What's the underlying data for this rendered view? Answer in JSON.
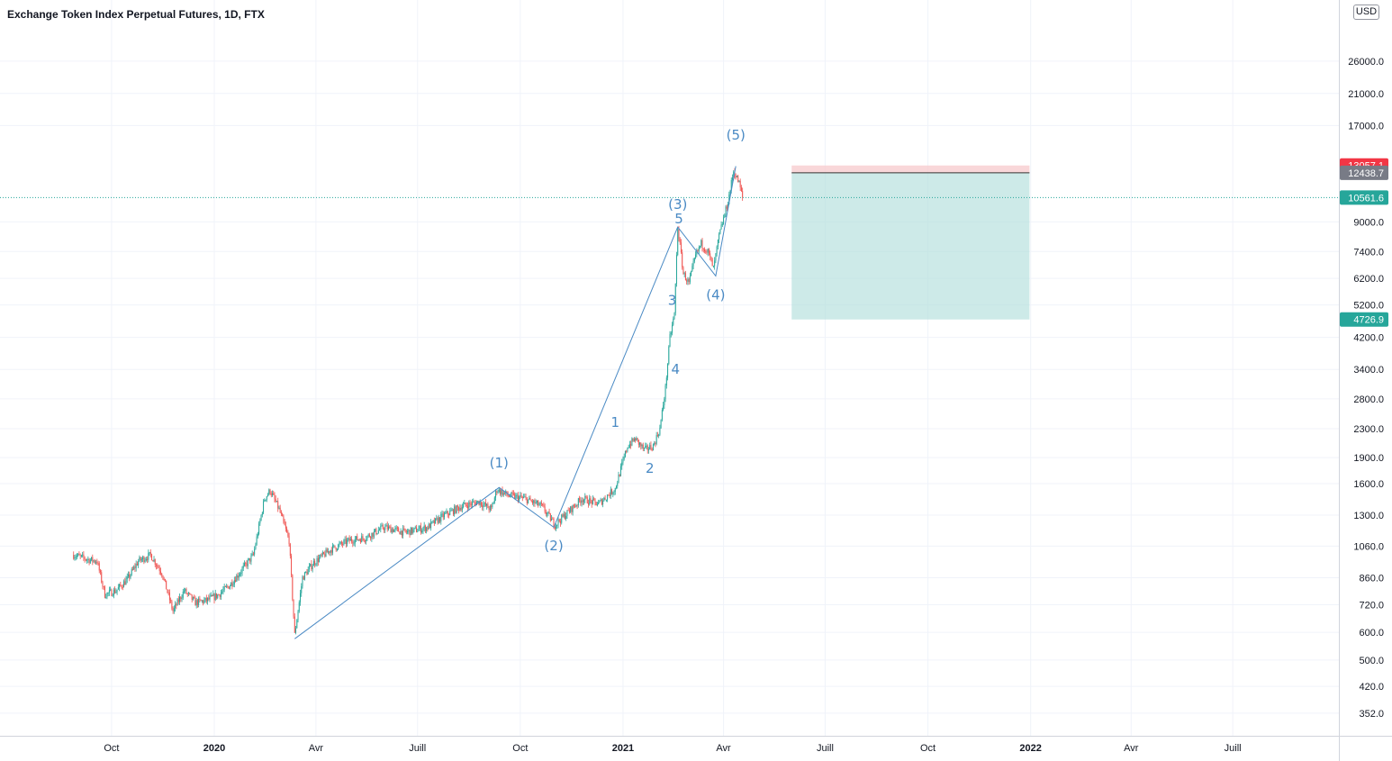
{
  "title": "Exchange Token Index Perpetual Futures, 1D, FTX",
  "currency": "USD",
  "colors": {
    "up": "#26a69a",
    "down": "#ef5350",
    "wave": "#4a8ac4",
    "grid": "#f0f3fa",
    "last_price": "#26a69a",
    "stop": "#f23645",
    "entry": "#787b86",
    "target_zone": "#b2dfdb",
    "stop_zone": "#f7c9cc"
  },
  "chart_data": {
    "type": "candlestick",
    "y_scale": "log",
    "ylim": [
      320,
      33000
    ],
    "y_ticks": [
      352,
      420,
      500,
      600,
      720,
      860,
      1060,
      1300,
      1600,
      1900,
      2300,
      2800,
      3400,
      4200,
      5200,
      6200,
      7400,
      9000,
      17000,
      21000,
      26000
    ],
    "y_tick_labels": [
      "352.0",
      "420.0",
      "500.0",
      "600.0",
      "720.0",
      "860.0",
      "1060.0",
      "1300.0",
      "1600.0",
      "1900.0",
      "2300.0",
      "2800.0",
      "3400.0",
      "4200.0",
      "5200.0",
      "6200.0",
      "7400.0",
      "9000.0",
      "17000.0",
      "21000.0",
      "26000.0"
    ],
    "x_axis_labels": [
      {
        "label": "Oct",
        "date": "2019-10-01"
      },
      {
        "label": "2020",
        "date": "2020-01-01"
      },
      {
        "label": "Avr",
        "date": "2020-04-01"
      },
      {
        "label": "Juill",
        "date": "2020-07-01"
      },
      {
        "label": "Oct",
        "date": "2020-10-01"
      },
      {
        "label": "2021",
        "date": "2021-01-01"
      },
      {
        "label": "Avr",
        "date": "2021-04-01"
      },
      {
        "label": "Juill",
        "date": "2021-07-01"
      },
      {
        "label": "Oct",
        "date": "2021-10-01"
      },
      {
        "label": "2022",
        "date": "2022-01-01"
      },
      {
        "label": "Avr",
        "date": "2022-04-01"
      },
      {
        "label": "Juill",
        "date": "2022-07-01"
      }
    ],
    "price_path": [
      [
        "2019-08-28",
        1000
      ],
      [
        "2019-09-10",
        970
      ],
      [
        "2019-09-18",
        960
      ],
      [
        "2019-09-25",
        770
      ],
      [
        "2019-10-05",
        790
      ],
      [
        "2019-10-15",
        850
      ],
      [
        "2019-10-25",
        960
      ],
      [
        "2019-11-05",
        1000
      ],
      [
        "2019-11-15",
        890
      ],
      [
        "2019-11-25",
        690
      ],
      [
        "2019-12-05",
        790
      ],
      [
        "2019-12-15",
        730
      ],
      [
        "2019-12-25",
        740
      ],
      [
        "2020-01-05",
        770
      ],
      [
        "2020-01-15",
        820
      ],
      [
        "2020-01-25",
        900
      ],
      [
        "2020-02-05",
        1000
      ],
      [
        "2020-02-15",
        1450
      ],
      [
        "2020-02-20",
        1530
      ],
      [
        "2020-02-28",
        1350
      ],
      [
        "2020-03-08",
        1100
      ],
      [
        "2020-03-13",
        590
      ],
      [
        "2020-03-20",
        860
      ],
      [
        "2020-03-30",
        950
      ],
      [
        "2020-04-15",
        1040
      ],
      [
        "2020-05-01",
        1100
      ],
      [
        "2020-05-15",
        1120
      ],
      [
        "2020-06-01",
        1200
      ],
      [
        "2020-06-20",
        1160
      ],
      [
        "2020-07-10",
        1200
      ],
      [
        "2020-07-25",
        1300
      ],
      [
        "2020-08-10",
        1380
      ],
      [
        "2020-08-25",
        1420
      ],
      [
        "2020-09-05",
        1350
      ],
      [
        "2020-09-10",
        1540
      ],
      [
        "2020-09-20",
        1480
      ],
      [
        "2020-10-05",
        1450
      ],
      [
        "2020-10-20",
        1380
      ],
      [
        "2020-11-01",
        1220
      ],
      [
        "2020-11-10",
        1300
      ],
      [
        "2020-11-25",
        1450
      ],
      [
        "2020-12-10",
        1400
      ],
      [
        "2020-12-25",
        1550
      ],
      [
        "2021-01-05",
        2050
      ],
      [
        "2021-01-12",
        2150
      ],
      [
        "2021-01-20",
        2000
      ],
      [
        "2021-01-28",
        2050
      ],
      [
        "2021-02-03",
        2300
      ],
      [
        "2021-02-08",
        3000
      ],
      [
        "2021-02-12",
        4200
      ],
      [
        "2021-02-16",
        4900
      ],
      [
        "2021-02-19",
        8700
      ],
      [
        "2021-02-24",
        6400
      ],
      [
        "2021-03-01",
        6000
      ],
      [
        "2021-03-07",
        7200
      ],
      [
        "2021-03-12",
        7800
      ],
      [
        "2021-03-18",
        7400
      ],
      [
        "2021-03-23",
        6600
      ],
      [
        "2021-03-28",
        8200
      ],
      [
        "2021-04-05",
        10300
      ],
      [
        "2021-04-10",
        12600
      ],
      [
        "2021-04-15",
        11600
      ],
      [
        "2021-04-18",
        10561.6
      ]
    ],
    "wave_lines": [
      [
        [
          "2020-03-13",
          575
        ],
        [
          "2020-09-12",
          1560
        ],
        [
          "2020-10-31",
          1200
        ],
        [
          "2021-02-19",
          8700
        ],
        [
          "2021-03-25",
          6300
        ],
        [
          "2021-04-12",
          13000
        ]
      ]
    ],
    "wave_labels": [
      {
        "text": "(1)",
        "date": "2020-09-12",
        "price": 1780
      },
      {
        "text": "(2)",
        "date": "2020-10-31",
        "price": 1030
      },
      {
        "text": "(3)",
        "date": "2021-02-19",
        "price": 9800
      },
      {
        "text": "5",
        "date": "2021-02-20",
        "price": 8920
      },
      {
        "text": "(4)",
        "date": "2021-03-25",
        "price": 5400
      },
      {
        "text": "(5)",
        "date": "2021-04-12",
        "price": 15500
      },
      {
        "text": "1",
        "date": "2020-12-25",
        "price": 2330
      },
      {
        "text": "2",
        "date": "2021-01-25",
        "price": 1720
      },
      {
        "text": "3",
        "date": "2021-02-14",
        "price": 5200
      },
      {
        "text": "4",
        "date": "2021-02-17",
        "price": 3300
      }
    ],
    "position": {
      "start": "2021-06-01",
      "end": "2021-12-31",
      "stop": 13057.1,
      "entry": 12438.7,
      "target": 4726.9
    },
    "last_price": 10561.6,
    "price_labels": [
      {
        "price": 13057.1,
        "text": "13057.1",
        "kind": "stop"
      },
      {
        "price": 12438.7,
        "text": "12438.7",
        "kind": "entry"
      },
      {
        "price": 10561.6,
        "text": "10561.6",
        "kind": "last_price"
      },
      {
        "price": 4726.9,
        "text": "4726.9",
        "kind": "target"
      }
    ]
  }
}
